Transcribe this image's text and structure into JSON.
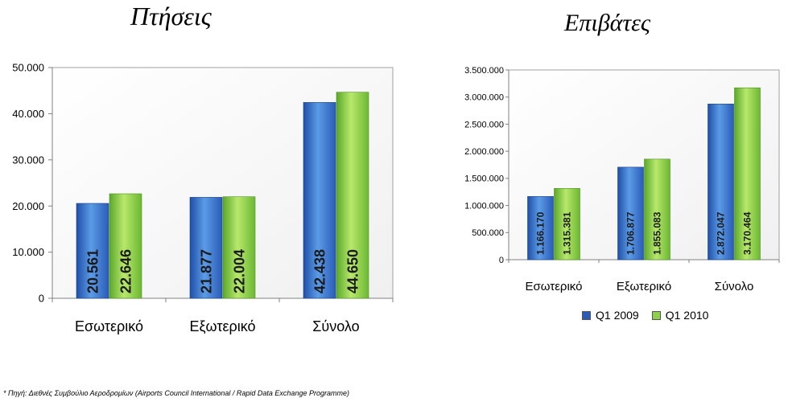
{
  "chart_data": [
    {
      "type": "bar",
      "title": "Πτήσεις",
      "categories": [
        "Εσωτερικό",
        "Εξωτερικό",
        "Σύνολο"
      ],
      "series": [
        {
          "name": "Q1 2009",
          "values": [
            20561,
            21877,
            42438
          ],
          "labels": [
            "20.561",
            "21.877",
            "42.438"
          ]
        },
        {
          "name": "Q1 2010",
          "values": [
            22646,
            22004,
            44650
          ],
          "labels": [
            "22.646",
            "22.004",
            "44.650"
          ]
        }
      ],
      "ylim": [
        0,
        50000
      ],
      "yticks": [
        0,
        10000,
        20000,
        30000,
        40000,
        50000
      ],
      "ytick_labels": [
        "0",
        "10.000",
        "20.000",
        "30.000",
        "40.000",
        "50.000"
      ],
      "grid": false,
      "legend": "none"
    },
    {
      "type": "bar",
      "title": "Επιβάτες",
      "categories": [
        "Εσωτερικό",
        "Εξωτερικό",
        "Σύνολο"
      ],
      "series": [
        {
          "name": "Q1 2009",
          "values": [
            1166170,
            1706877,
            2872047
          ],
          "labels": [
            "1.166.170",
            "1.706.877",
            "2.872.047"
          ]
        },
        {
          "name": "Q1 2010",
          "values": [
            1315381,
            1855083,
            3170464
          ],
          "labels": [
            "1.315.381",
            "1.855.083",
            "3.170.464"
          ]
        }
      ],
      "ylim": [
        0,
        3500000
      ],
      "yticks": [
        0,
        500000,
        1000000,
        1500000,
        2000000,
        2500000,
        3000000,
        3500000
      ],
      "ytick_labels": [
        "0",
        "500.000",
        "1.000.000",
        "1.500.000",
        "2.000.000",
        "2.500.000",
        "3.000.000",
        "3.500.000"
      ],
      "grid": false,
      "legend": "bottom"
    }
  ],
  "colors": {
    "series_2009_dark": "#1f4fa8",
    "series_2009_light": "#5b9be6",
    "series_2010_dark": "#5aa82a",
    "series_2010_light": "#b8e86c",
    "axis": "#808080"
  },
  "legend": {
    "q2009": "Q1 2009",
    "q2010": "Q1 2010"
  },
  "footnote": "* Πηγή: Διεθνές Συμβούλιο Αεροδρομίων (Airports Council International / Rapid Data Exchange Programme)"
}
